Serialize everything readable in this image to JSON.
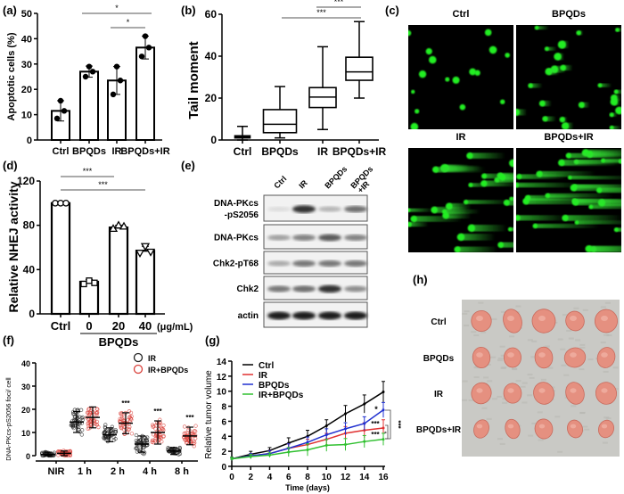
{
  "panel_labels": {
    "a": "(a)",
    "b": "(b)",
    "c": "(c)",
    "d": "(d)",
    "e": "(e)",
    "f": "(f)",
    "g": "(g)",
    "h": "(h)"
  },
  "chart_data": [
    {
      "id": "a",
      "type": "bar",
      "ylabel": "Apoptotic cells (%)",
      "ylim": [
        0,
        50
      ],
      "yticks": [
        0,
        10,
        20,
        30,
        40,
        50
      ],
      "categories": [
        "Ctrl",
        "BPQDs",
        "IR",
        "BPQDs+IR"
      ],
      "values": [
        11.5,
        27,
        23.5,
        36.5
      ],
      "points": [
        [
          15.5,
          11.5,
          8.5
        ],
        [
          29,
          27,
          25
        ],
        [
          29,
          23.5,
          18
        ],
        [
          41,
          36.5,
          33
        ]
      ],
      "error": [
        4,
        2.2,
        5.5,
        4.5
      ],
      "significance": [
        {
          "from": "BPQDs",
          "to": "BPQDs+IR",
          "label": "*"
        },
        {
          "from": "IR",
          "to": "BPQDs+IR",
          "label": "*"
        }
      ]
    },
    {
      "id": "b",
      "type": "box",
      "ylabel": "Tail moment",
      "ylim": [
        0,
        60
      ],
      "yticks": [
        0,
        20,
        40,
        60
      ],
      "categories": [
        "Ctrl",
        "BPQDs",
        "IR",
        "BPQDs+IR"
      ],
      "boxes": [
        {
          "min": 0,
          "q1": 1,
          "median": 1.5,
          "q3": 2,
          "max": 6.5
        },
        {
          "min": 1,
          "q1": 3.5,
          "median": 7.5,
          "q3": 14.5,
          "max": 25.5
        },
        {
          "min": 5,
          "q1": 15.5,
          "median": 20.5,
          "q3": 25,
          "max": 44.5
        },
        {
          "min": 20,
          "q1": 28.5,
          "median": 32.5,
          "q3": 39.5,
          "max": 56.5
        }
      ],
      "significance": [
        {
          "from": "BPQDs",
          "to": "BPQDs+IR",
          "label": "***"
        },
        {
          "from": "IR",
          "to": "BPQDs+IR",
          "label": "***"
        }
      ]
    },
    {
      "id": "d",
      "type": "bar",
      "ylabel": "Relative NHEJ activity",
      "ylim": [
        0,
        120
      ],
      "yticks": [
        0,
        40,
        80,
        120
      ],
      "categories": [
        "Ctrl",
        "0",
        "20",
        "40"
      ],
      "unit_label": "(μg/mL)",
      "group_label": "BPQDs",
      "values": [
        100,
        29,
        78,
        57
      ],
      "points": [
        [
          100,
          100,
          100
        ],
        [
          27,
          30,
          28
        ],
        [
          77,
          80,
          79
        ],
        [
          55,
          61,
          56
        ]
      ],
      "markers": [
        "circle",
        "square",
        "triangle-up",
        "triangle-down"
      ],
      "error": [
        0.5,
        2,
        2,
        4
      ],
      "significance": [
        {
          "from": "Ctrl",
          "to": "20",
          "label": "***"
        },
        {
          "from": "Ctrl",
          "to": "40",
          "label": "***"
        }
      ]
    },
    {
      "id": "f",
      "type": "scatter",
      "ylabel": "DNA-PKcs-pS2056 foci/ cell",
      "ylim": [
        0,
        40
      ],
      "yticks": [
        0,
        10,
        20,
        30,
        40
      ],
      "categories": [
        "NIR",
        "1 h",
        "2 h",
        "4 h",
        "8 h"
      ],
      "series": [
        {
          "name": "IR",
          "color": "#222222",
          "mean": [
            0.5,
            14.5,
            9,
            5,
            2
          ],
          "sd": [
            1,
            4.5,
            3,
            3.5,
            1.5
          ]
        },
        {
          "name": "IR+BPQDs",
          "color": "#d9403a",
          "mean": [
            1,
            16.5,
            14,
            10,
            8.5
          ],
          "sd": [
            1,
            4.5,
            4.5,
            5,
            3.8
          ]
        }
      ],
      "annotations": [
        "",
        "",
        "***",
        "***",
        "***"
      ]
    },
    {
      "id": "g",
      "type": "line",
      "xlabel": "Time (days)",
      "ylabel": "Relative tumor volume",
      "xlim": [
        0,
        16
      ],
      "ylim": [
        0,
        14
      ],
      "x": [
        0,
        2,
        4,
        6,
        8,
        10,
        12,
        14,
        16
      ],
      "xticks": [
        0,
        2,
        4,
        6,
        8,
        10,
        12,
        14,
        16
      ],
      "yticks": [
        0,
        2,
        4,
        6,
        8,
        10,
        12,
        14
      ],
      "legend": "top-left",
      "series": [
        {
          "name": "Ctrl",
          "color": "#000000",
          "values": [
            1,
            1.6,
            2.1,
            3.1,
            4.0,
            5.4,
            7.0,
            8.3,
            9.9
          ],
          "error": [
            0.2,
            0.4,
            0.4,
            0.7,
            0.8,
            0.8,
            1.1,
            1.2,
            1.4
          ]
        },
        {
          "name": "IR",
          "color": "#e03030",
          "values": [
            1,
            1.4,
            1.7,
            2.4,
            2.9,
            3.6,
            4.4,
            4.8,
            5.1
          ],
          "error": [
            0.2,
            0.3,
            0.4,
            0.6,
            0.7,
            0.8,
            0.9,
            1.0,
            1.1
          ]
        },
        {
          "name": "BPQDs",
          "color": "#2030d0",
          "values": [
            1,
            1.4,
            1.7,
            2.4,
            3.2,
            4.2,
            5.0,
            5.7,
            7.5
          ],
          "error": [
            0.2,
            0.3,
            0.4,
            0.6,
            0.7,
            0.8,
            0.8,
            0.9,
            1.0
          ]
        },
        {
          "name": "IR+BPQDs",
          "color": "#30c030",
          "values": [
            1,
            1.3,
            1.5,
            1.9,
            2.2,
            2.8,
            2.9,
            3.3,
            3.6
          ],
          "error": [
            0.2,
            0.3,
            0.3,
            0.6,
            0.8,
            0.8,
            0.8,
            0.8,
            0.8
          ]
        }
      ],
      "annotations": {
        "bpqds_vs_ctrl": "*",
        "ir_vs_ctrl": "***",
        "irbpqds_vs_ctrl": "***",
        "bracket_ir": "*",
        "bracket_bpqds": "***"
      }
    }
  ],
  "comet": {
    "groups": [
      "Ctrl",
      "BPQDs",
      "IR",
      "BPQDs+IR"
    ],
    "background": "#000000",
    "nucleus_color": "#22ee22"
  },
  "western": {
    "lanes": [
      "Ctrl",
      "IR",
      "BPQDs",
      "BPQDs\n+IR"
    ],
    "lane_lines": [
      [
        "Ctrl"
      ],
      [
        "IR"
      ],
      [
        "BPQDs"
      ],
      [
        "BPQDs",
        "+IR"
      ]
    ],
    "rows": [
      {
        "label_lines": [
          "DNA-PKcs",
          "-pS2056"
        ],
        "intensity": [
          0.05,
          0.9,
          0.25,
          0.6
        ]
      },
      {
        "label_lines": [
          "DNA-PKcs"
        ],
        "intensity": [
          0.35,
          0.5,
          0.7,
          0.5
        ]
      },
      {
        "label_lines": [
          "Chk2-pT68"
        ],
        "intensity": [
          0.3,
          0.55,
          0.55,
          0.55
        ]
      },
      {
        "label_lines": [
          "Chk2"
        ],
        "intensity": [
          0.55,
          0.6,
          0.9,
          0.45
        ]
      },
      {
        "label_lines": [
          "actin"
        ],
        "intensity": [
          1,
          1,
          1,
          1
        ]
      }
    ]
  },
  "tumor_photo": {
    "rows": [
      "Ctrl",
      "BPQDs",
      "IR",
      "BPQDs+IR"
    ],
    "tumors_per_row": 5,
    "tissue_color": "#e59080",
    "background_color": "#c9c9c5"
  }
}
